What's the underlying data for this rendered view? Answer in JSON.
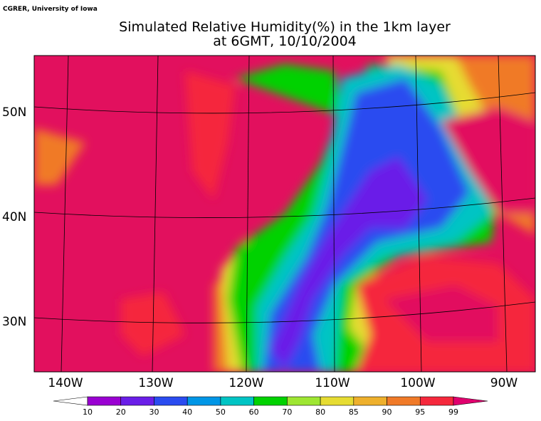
{
  "header": {
    "credit": "CGRER, University of Iowa",
    "title": [
      "Simulated Relative Humidity(%) in the 1km layer",
      "at 6GMT, 10/10/2004"
    ]
  },
  "map": {
    "lon_labels": [
      "140W",
      "130W",
      "120W",
      "110W",
      "100W",
      "90W"
    ],
    "lat_labels": [
      "50N",
      "40N",
      "30N"
    ]
  },
  "legend": {
    "labels": [
      10,
      20,
      30,
      40,
      50,
      60,
      70,
      80,
      85,
      90,
      95,
      99
    ],
    "colors": [
      "#ffffff",
      "#9a00d2",
      "#6a1ee8",
      "#2a4cf0",
      "#0096e6",
      "#00c4c4",
      "#00d200",
      "#9ee632",
      "#e6dc32",
      "#eeb02c",
      "#f07a28",
      "#f5283c",
      "#e0006e"
    ]
  }
}
